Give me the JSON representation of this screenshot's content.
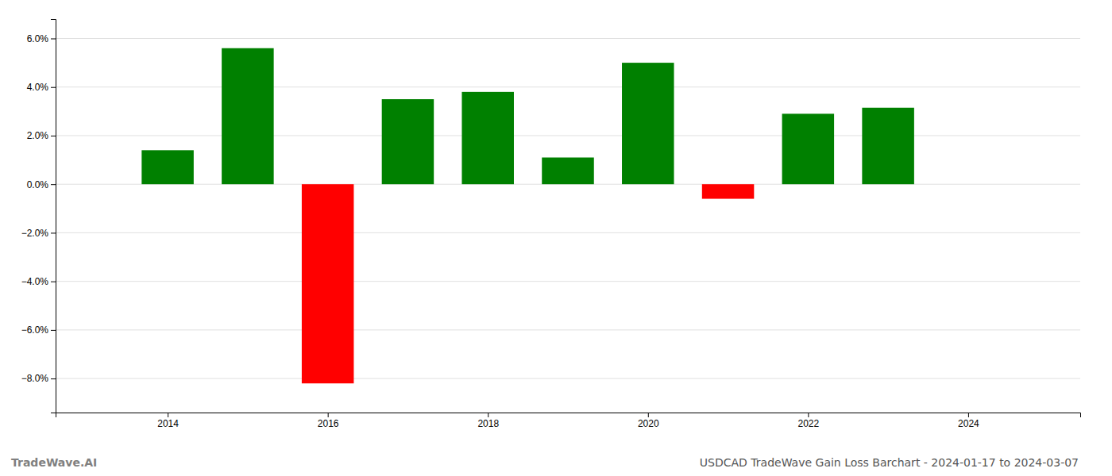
{
  "chart_data": {
    "type": "bar",
    "title": "USDCAD TradeWave Gain Loss Barchart - 2024-01-17 to 2024-03-07",
    "annotations": [
      "TradeWave.AI"
    ],
    "x": [
      2014,
      2015,
      2016,
      2017,
      2018,
      2019,
      2020,
      2021,
      2022,
      2023
    ],
    "values": [
      0.014,
      0.056,
      -0.082,
      0.035,
      0.038,
      0.011,
      0.05,
      -0.006,
      0.029,
      0.0315
    ],
    "colors": [
      "#008000",
      "#008000",
      "#ff0000",
      "#008000",
      "#008000",
      "#008000",
      "#008000",
      "#ff0000",
      "#008000",
      "#008000"
    ],
    "xlim": [
      2012.6,
      2025.4
    ],
    "xticks": [
      2014,
      2016,
      2018,
      2020,
      2022,
      2024
    ],
    "ylim": [
      -0.094,
      0.068
    ],
    "yticks": [
      {
        "value": 0.06,
        "label": "6.0%"
      },
      {
        "value": 0.04,
        "label": "4.0%"
      },
      {
        "value": 0.02,
        "label": "2.0%"
      },
      {
        "value": 0.0,
        "label": "0.0%"
      },
      {
        "value": -0.02,
        "label": "−2.0%"
      },
      {
        "value": -0.04,
        "label": "−4.0%"
      },
      {
        "value": -0.06,
        "label": "−6.0%"
      },
      {
        "value": -0.08,
        "label": "−8.0%"
      }
    ],
    "grid": true
  }
}
